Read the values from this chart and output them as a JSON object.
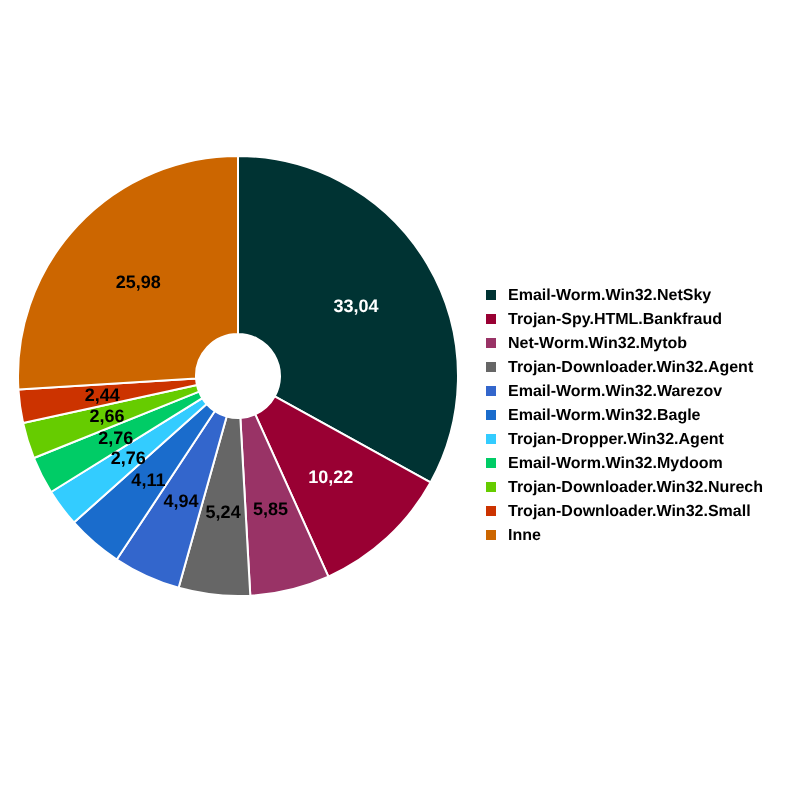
{
  "chart_data": {
    "type": "donut",
    "categories": [
      "Email-Worm.Win32.NetSky",
      "Trojan-Spy.HTML.Bankfraud",
      "Net-Worm.Win32.Mytob",
      "Trojan-Downloader.Win32.Agent",
      "Email-Worm.Win32.Warezov",
      "Email-Worm.Win32.Bagle",
      "Trojan-Dropper.Win32.Agent",
      "Email-Worm.Win32.Mydoom",
      "Trojan-Downloader.Win32.Nurech",
      "Trojan-Downloader.Win32.Small",
      "Inne"
    ],
    "values": [
      33.04,
      10.22,
      5.85,
      5.24,
      4.94,
      4.11,
      2.76,
      2.76,
      2.66,
      2.44,
      25.98
    ],
    "value_labels": [
      "33,04",
      "10,22",
      "5,85",
      "5,24",
      "4,94",
      "4,11",
      "2,76",
      "2,76",
      "2,66",
      "2,44",
      "25,98"
    ],
    "colors": [
      "#003333",
      "#990033",
      "#993366",
      "#666666",
      "#3366cc",
      "#1a6ccc",
      "#33ccff",
      "#00cc66",
      "#66cc00",
      "#cc3300",
      "#cc6600"
    ],
    "legend": "right"
  }
}
